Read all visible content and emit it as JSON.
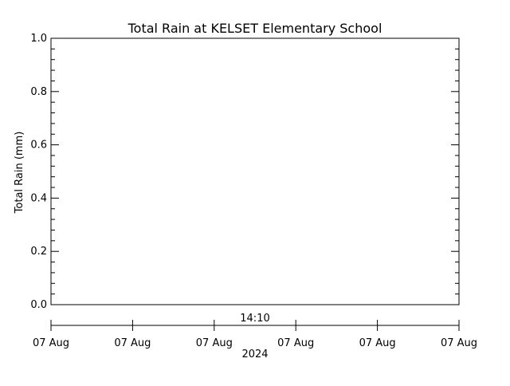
{
  "chart_data": {
    "type": "line",
    "title": "Total Rain at KELSET Elementary School",
    "ylabel": "Total Rain (mm)",
    "xlabel": "",
    "ylim": [
      0.0,
      1.0
    ],
    "y_ticks": [
      "0.0",
      "0.2",
      "0.4",
      "0.6",
      "0.8",
      "1.0"
    ],
    "x_time_label": "14:10",
    "x_ticks": [
      "07 Aug",
      "07 Aug",
      "07 Aug",
      "07 Aug",
      "07 Aug",
      "07 Aug"
    ],
    "x_year_label": "2024",
    "grid": false,
    "series": [
      {
        "values": []
      }
    ]
  },
  "colors": {
    "axis": "#000000",
    "background": "#ffffff"
  }
}
